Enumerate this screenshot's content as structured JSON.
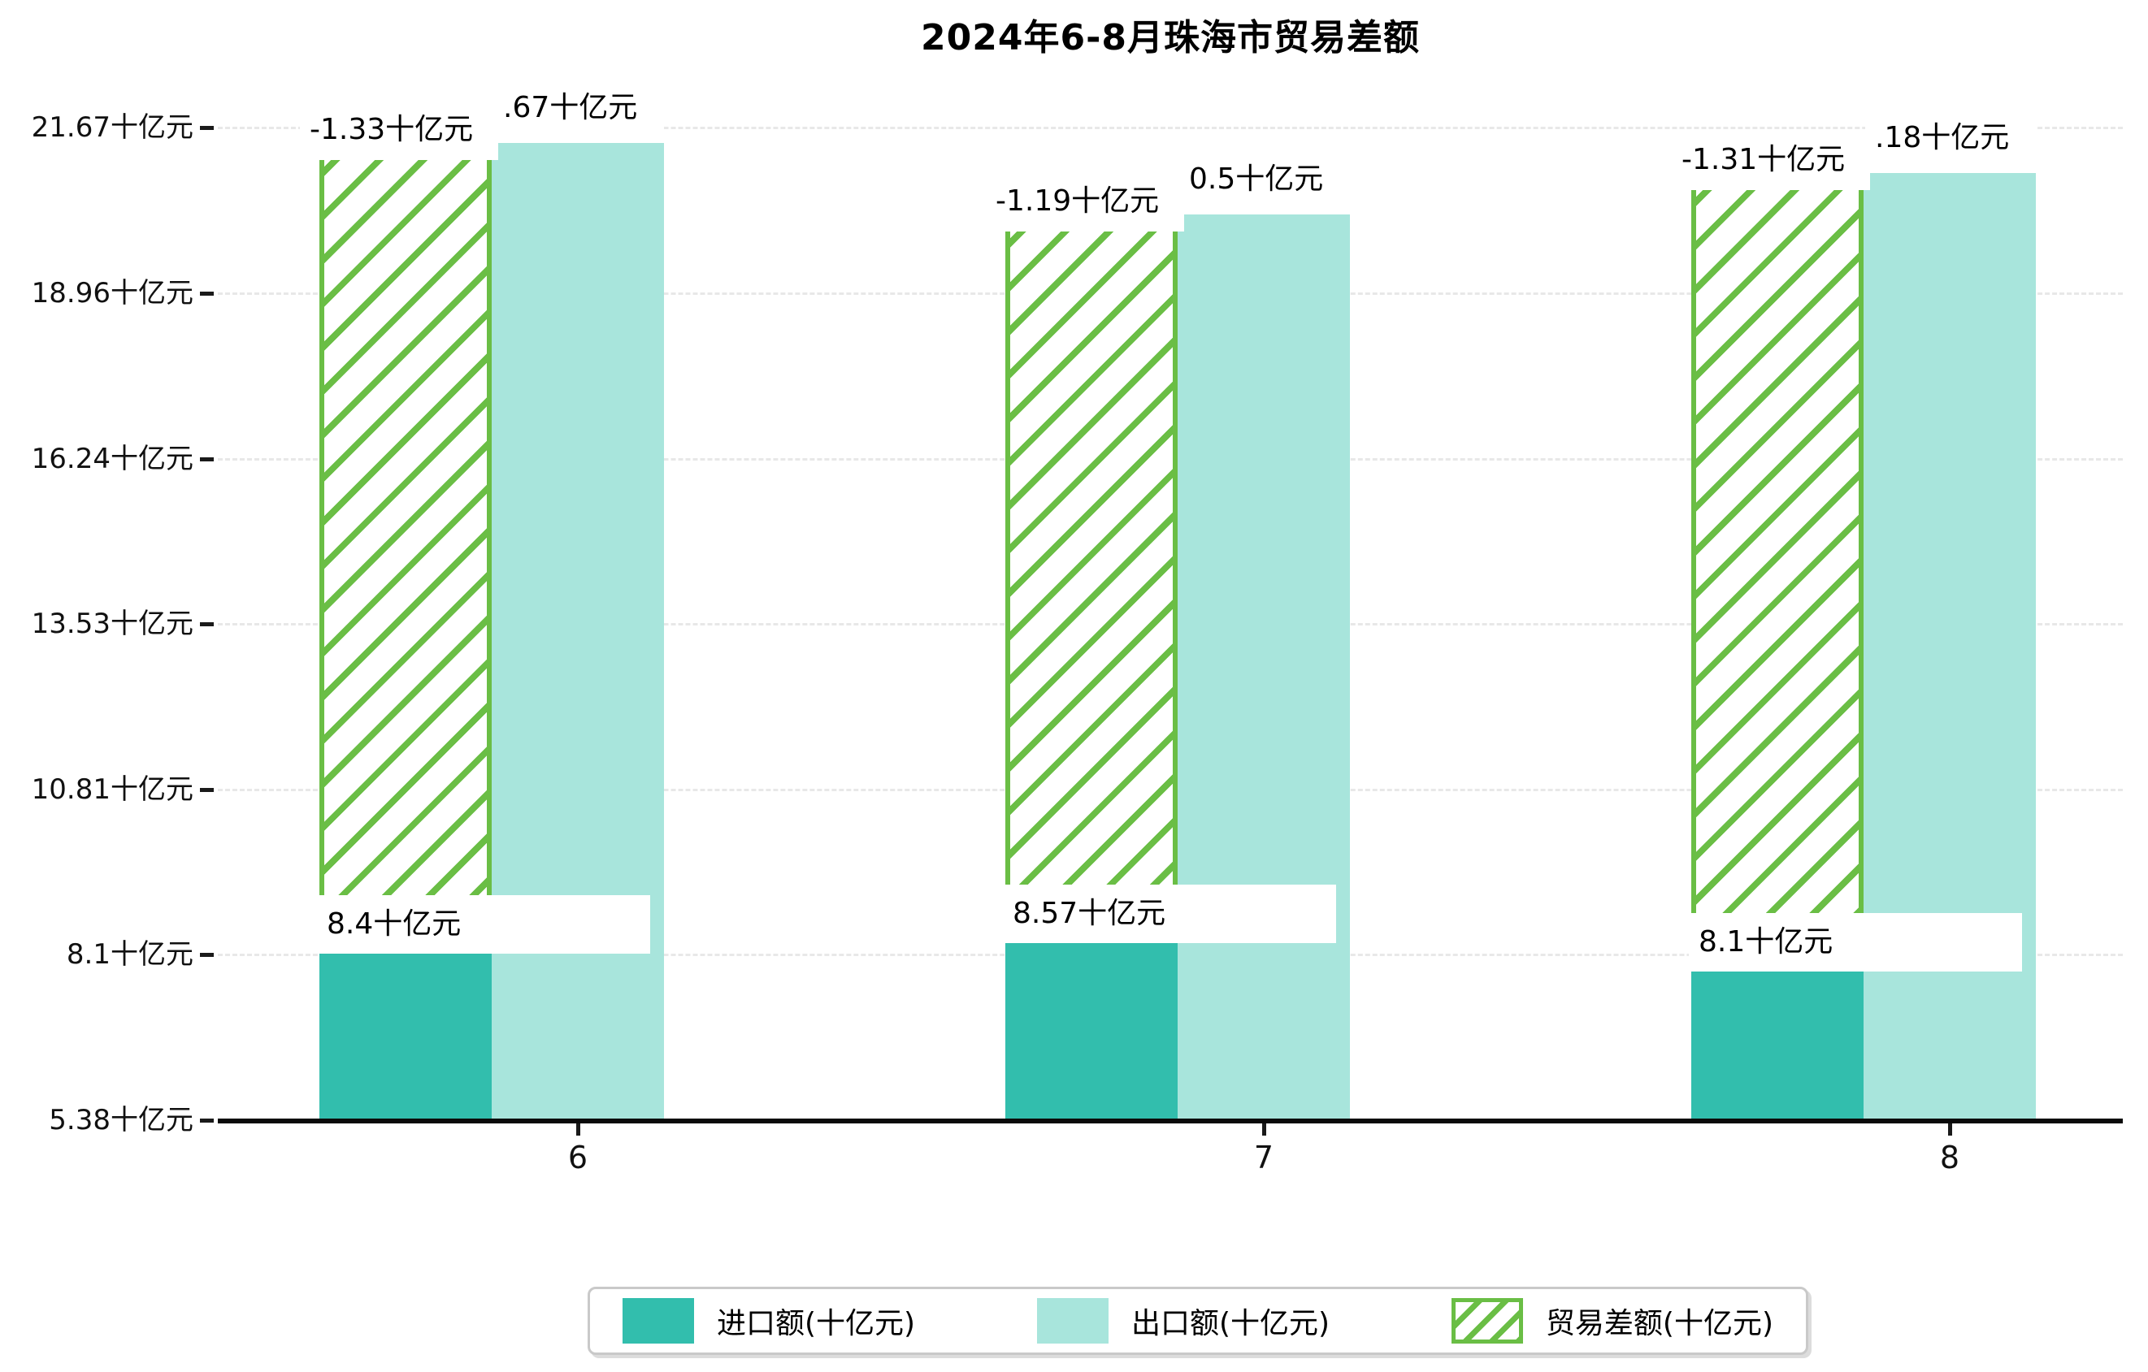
{
  "title": "2024年6-8月珠海市贸易差额",
  "chart_data": {
    "type": "bar",
    "categories": [
      "6",
      "7",
      "8"
    ],
    "series": [
      {
        "name": "进口额(十亿元)",
        "values": [
          8.4,
          8.57,
          8.1
        ],
        "labels": [
          "8.4十亿元",
          "8.57十亿元",
          "8.1十亿元"
        ],
        "color": "#32bead"
      },
      {
        "name": "出口额(十亿元)",
        "values": [
          21.67,
          20.5,
          21.18
        ],
        "labels_visible": [
          ".67十亿元",
          "0.5十亿元",
          ".18十亿元"
        ],
        "color": "#a8e5dc"
      },
      {
        "name": "贸易差额(十亿元)",
        "values": [
          -1.33,
          -1.19,
          -1.31
        ],
        "labels": [
          "-1.33十亿元",
          "-1.19十亿元",
          "-1.31十亿元"
        ],
        "style": "hatched",
        "color": "#6abe45"
      }
    ],
    "yticks": [
      21.67,
      18.96,
      16.24,
      13.53,
      10.81,
      8.1,
      5.38
    ],
    "ytick_labels": [
      "21.67十亿元",
      "18.96十亿元",
      "16.24十亿元",
      "13.53十亿元",
      "10.81十亿元",
      "8.1十亿元",
      "5.38十亿元"
    ],
    "ylim": [
      5.38,
      21.9
    ],
    "grid": "horizontal-dashed",
    "gridline_color": "#e8e8e8",
    "legend_position": "bottom"
  },
  "legend": {
    "items": [
      {
        "label": "进口额(十亿元)"
      },
      {
        "label": "出口额(十亿元)"
      },
      {
        "label": "贸易差额(十亿元)"
      }
    ]
  }
}
